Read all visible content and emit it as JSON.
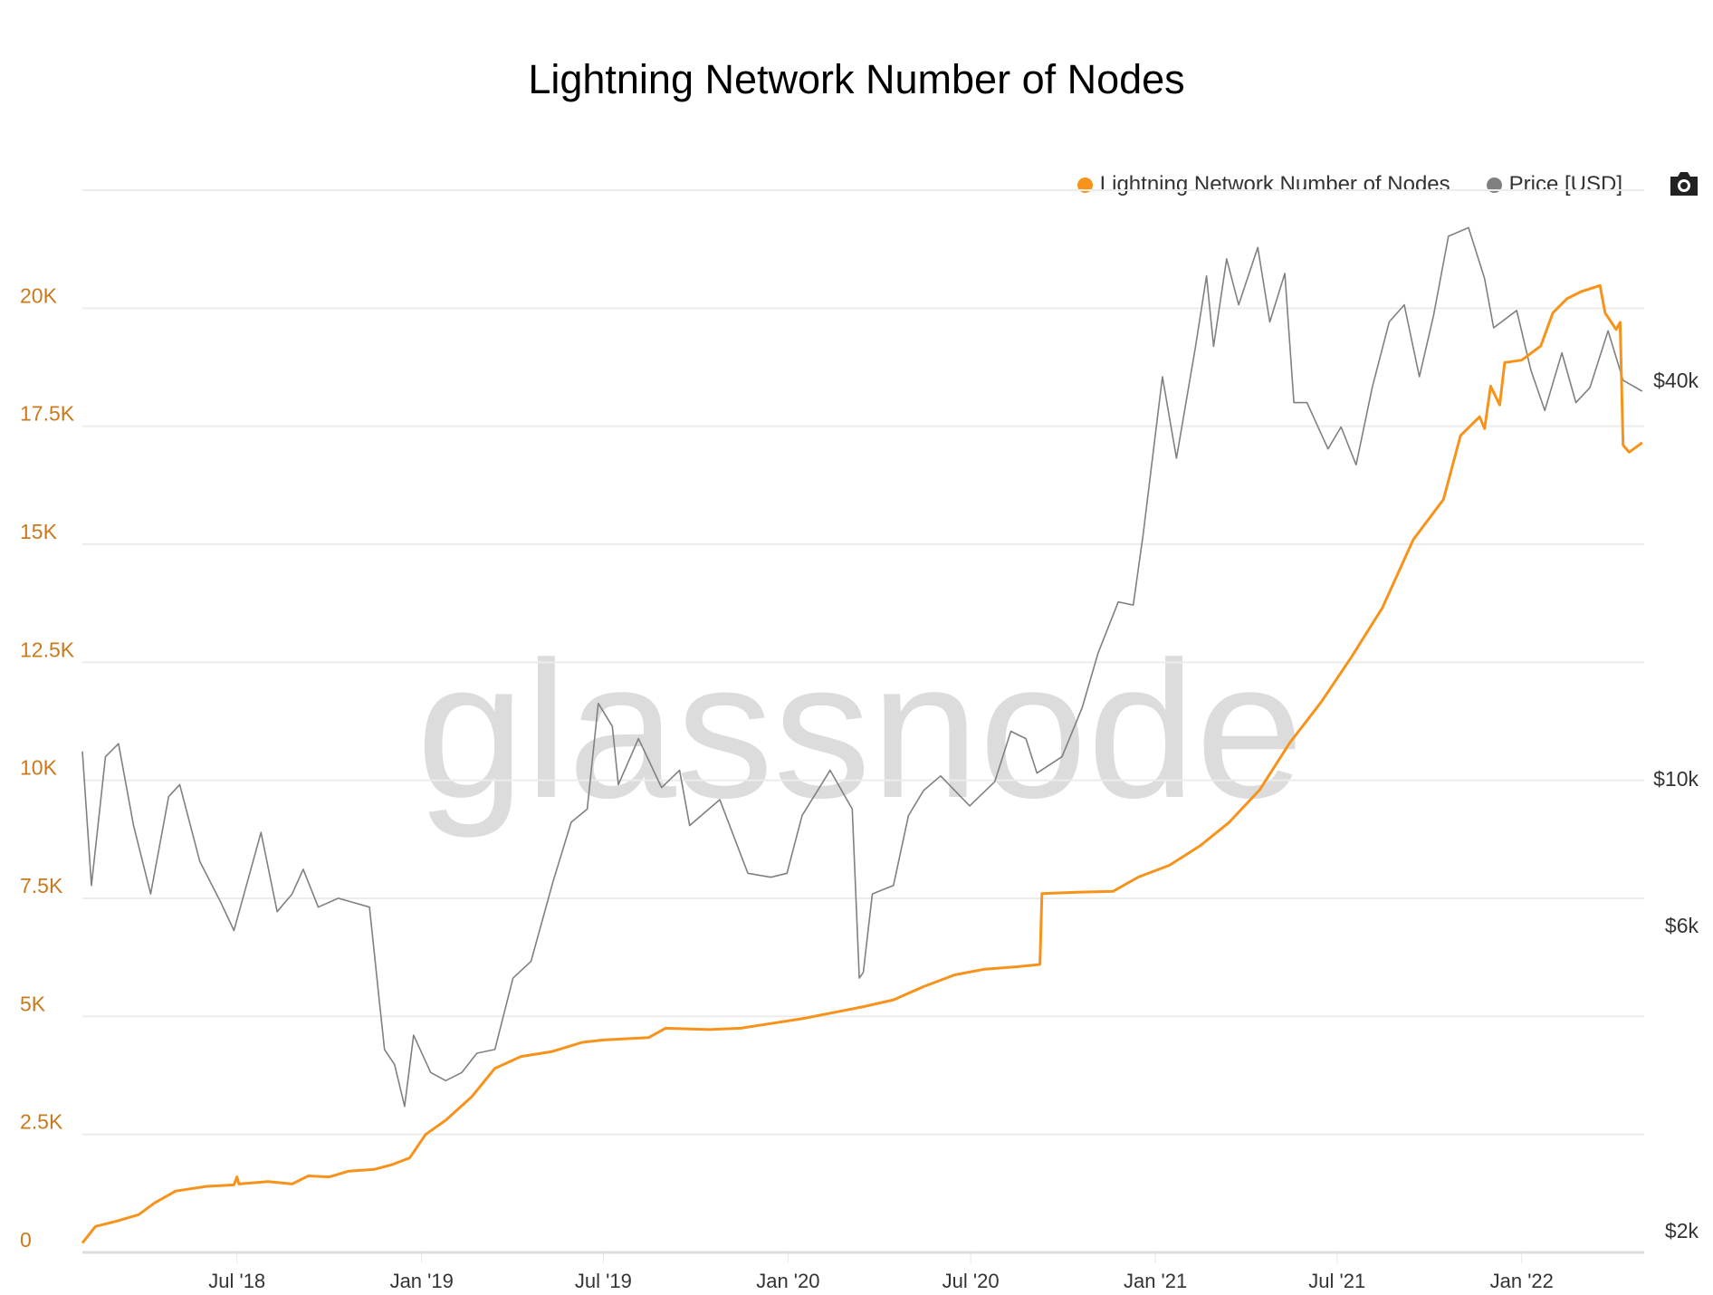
{
  "chart_data": {
    "type": "line",
    "title": "Lightning Network Number of Nodes",
    "watermark": "glassnode",
    "legend_position": "top-right",
    "grid": true,
    "x_ticks": [
      "Jul '18",
      "Jan '19",
      "Jul '19",
      "Jan '20",
      "Jul '20",
      "Jan '21",
      "Jul '21",
      "Jan '22"
    ],
    "x_tick_dates": [
      "2018-07-01",
      "2019-01-01",
      "2019-07-01",
      "2020-01-01",
      "2020-07-01",
      "2021-01-01",
      "2021-07-01",
      "2022-01-01"
    ],
    "xlim": [
      "2018-01-28",
      "2022-05-03"
    ],
    "y_left": {
      "scale": "linear",
      "ylim": [
        0,
        22500
      ],
      "ticks": [
        0,
        2500,
        5000,
        7500,
        10000,
        12500,
        15000,
        17500,
        20000
      ],
      "tick_labels": [
        "0",
        "2.5K",
        "5K",
        "7.5K",
        "10K",
        "12.5K",
        "15K",
        "17.5K",
        "20K"
      ],
      "color": "#c87a1c"
    },
    "y_right": {
      "scale": "log",
      "ticks": [
        2000,
        6000,
        10000,
        40000
      ],
      "tick_labels": [
        "$2k",
        "$6k",
        "$10k",
        "$40k"
      ]
    },
    "series": [
      {
        "name": "Lightning Network Number of Nodes",
        "color": "#f7931a",
        "axis": "left",
        "points": [
          [
            "2018-01-28",
            200
          ],
          [
            "2018-02-10",
            550
          ],
          [
            "2018-03-01",
            650
          ],
          [
            "2018-03-25",
            800
          ],
          [
            "2018-04-10",
            1050
          ],
          [
            "2018-05-01",
            1300
          ],
          [
            "2018-06-01",
            1400
          ],
          [
            "2018-06-28",
            1430
          ],
          [
            "2018-07-01",
            1600
          ],
          [
            "2018-07-03",
            1450
          ],
          [
            "2018-08-01",
            1500
          ],
          [
            "2018-08-25",
            1450
          ],
          [
            "2018-09-10",
            1620
          ],
          [
            "2018-10-01",
            1600
          ],
          [
            "2018-10-20",
            1720
          ],
          [
            "2018-11-15",
            1760
          ],
          [
            "2018-12-01",
            1850
          ],
          [
            "2018-12-20",
            2000
          ],
          [
            "2019-01-05",
            2500
          ],
          [
            "2019-01-25",
            2800
          ],
          [
            "2019-02-20",
            3300
          ],
          [
            "2019-03-15",
            3900
          ],
          [
            "2019-04-10",
            4150
          ],
          [
            "2019-05-10",
            4250
          ],
          [
            "2019-06-10",
            4450
          ],
          [
            "2019-07-01",
            4500
          ],
          [
            "2019-08-15",
            4550
          ],
          [
            "2019-09-01",
            4750
          ],
          [
            "2019-10-15",
            4720
          ],
          [
            "2019-11-15",
            4750
          ],
          [
            "2019-12-15",
            4850
          ],
          [
            "2020-01-15",
            4950
          ],
          [
            "2020-02-15",
            5080
          ],
          [
            "2020-03-15",
            5200
          ],
          [
            "2020-04-15",
            5350
          ],
          [
            "2020-05-15",
            5630
          ],
          [
            "2020-06-15",
            5880
          ],
          [
            "2020-07-15",
            6000
          ],
          [
            "2020-08-15",
            6050
          ],
          [
            "2020-09-08",
            6100
          ],
          [
            "2020-09-10",
            7600
          ],
          [
            "2020-10-15",
            7630
          ],
          [
            "2020-11-20",
            7650
          ],
          [
            "2020-12-15",
            7950
          ],
          [
            "2021-01-15",
            8200
          ],
          [
            "2021-02-15",
            8620
          ],
          [
            "2021-03-15",
            9100
          ],
          [
            "2021-04-15",
            9800
          ],
          [
            "2021-05-15",
            10800
          ],
          [
            "2021-06-15",
            11650
          ],
          [
            "2021-07-15",
            12600
          ],
          [
            "2021-08-15",
            13650
          ],
          [
            "2021-09-15",
            15100
          ],
          [
            "2021-10-15",
            15950
          ],
          [
            "2021-11-01",
            17300
          ],
          [
            "2021-11-20",
            17700
          ],
          [
            "2021-11-25",
            17450
          ],
          [
            "2021-12-01",
            18350
          ],
          [
            "2021-12-10",
            17950
          ],
          [
            "2021-12-15",
            18850
          ],
          [
            "2022-01-01",
            18900
          ],
          [
            "2022-01-20",
            19200
          ],
          [
            "2022-02-01",
            19900
          ],
          [
            "2022-02-15",
            20200
          ],
          [
            "2022-03-01",
            20350
          ],
          [
            "2022-03-20",
            20480
          ],
          [
            "2022-03-25",
            19900
          ],
          [
            "2022-04-05",
            19550
          ],
          [
            "2022-04-09",
            19700
          ],
          [
            "2022-04-12",
            17100
          ],
          [
            "2022-04-18",
            16950
          ],
          [
            "2022-05-01",
            17150
          ]
        ]
      },
      {
        "name": "Price [USD]",
        "color": "#808080",
        "axis": "right",
        "points": [
          [
            "2018-01-28",
            11000
          ],
          [
            "2018-02-06",
            6900
          ],
          [
            "2018-02-20",
            10800
          ],
          [
            "2018-03-05",
            11300
          ],
          [
            "2018-03-20",
            8500
          ],
          [
            "2018-04-06",
            6700
          ],
          [
            "2018-04-24",
            9400
          ],
          [
            "2018-05-05",
            9800
          ],
          [
            "2018-05-25",
            7500
          ],
          [
            "2018-06-15",
            6500
          ],
          [
            "2018-06-28",
            5900
          ],
          [
            "2018-07-25",
            8300
          ],
          [
            "2018-08-10",
            6300
          ],
          [
            "2018-08-25",
            6700
          ],
          [
            "2018-09-05",
            7300
          ],
          [
            "2018-09-20",
            6400
          ],
          [
            "2018-10-10",
            6600
          ],
          [
            "2018-11-10",
            6400
          ],
          [
            "2018-11-20",
            4600
          ],
          [
            "2018-11-25",
            3900
          ],
          [
            "2018-12-05",
            3700
          ],
          [
            "2018-12-15",
            3200
          ],
          [
            "2018-12-24",
            4100
          ],
          [
            "2019-01-10",
            3600
          ],
          [
            "2019-01-25",
            3500
          ],
          [
            "2019-02-10",
            3600
          ],
          [
            "2019-02-25",
            3850
          ],
          [
            "2019-03-15",
            3900
          ],
          [
            "2019-04-02",
            5000
          ],
          [
            "2019-04-20",
            5300
          ],
          [
            "2019-05-12",
            7000
          ],
          [
            "2019-05-30",
            8600
          ],
          [
            "2019-06-15",
            9000
          ],
          [
            "2019-06-26",
            13000
          ],
          [
            "2019-07-10",
            12000
          ],
          [
            "2019-07-16",
            9800
          ],
          [
            "2019-08-05",
            11500
          ],
          [
            "2019-08-28",
            9700
          ],
          [
            "2019-09-15",
            10300
          ],
          [
            "2019-09-25",
            8500
          ],
          [
            "2019-10-25",
            9300
          ],
          [
            "2019-11-22",
            7200
          ],
          [
            "2019-12-15",
            7100
          ],
          [
            "2019-12-31",
            7200
          ],
          [
            "2020-01-15",
            8800
          ],
          [
            "2020-02-12",
            10300
          ],
          [
            "2020-03-05",
            9000
          ],
          [
            "2020-03-12",
            5000
          ],
          [
            "2020-03-16",
            5100
          ],
          [
            "2020-03-25",
            6700
          ],
          [
            "2020-04-15",
            6900
          ],
          [
            "2020-04-30",
            8800
          ],
          [
            "2020-05-15",
            9600
          ],
          [
            "2020-06-01",
            10100
          ],
          [
            "2020-06-30",
            9100
          ],
          [
            "2020-07-25",
            9900
          ],
          [
            "2020-08-10",
            11800
          ],
          [
            "2020-08-25",
            11500
          ],
          [
            "2020-09-05",
            10200
          ],
          [
            "2020-09-30",
            10800
          ],
          [
            "2020-10-20",
            12800
          ],
          [
            "2020-11-05",
            15500
          ],
          [
            "2020-11-25",
            18500
          ],
          [
            "2020-12-10",
            18300
          ],
          [
            "2020-12-20",
            23500
          ],
          [
            "2021-01-08",
            40500
          ],
          [
            "2021-01-22",
            30500
          ],
          [
            "2021-02-10",
            45000
          ],
          [
            "2021-02-21",
            57500
          ],
          [
            "2021-02-28",
            45000
          ],
          [
            "2021-03-13",
            61000
          ],
          [
            "2021-03-25",
            52000
          ],
          [
            "2021-04-13",
            63500
          ],
          [
            "2021-04-25",
            49000
          ],
          [
            "2021-05-10",
            58000
          ],
          [
            "2021-05-19",
            37000
          ],
          [
            "2021-06-01",
            37000
          ],
          [
            "2021-06-22",
            31500
          ],
          [
            "2021-07-05",
            34000
          ],
          [
            "2021-07-20",
            29800
          ],
          [
            "2021-08-05",
            39000
          ],
          [
            "2021-08-22",
            49000
          ],
          [
            "2021-09-06",
            52000
          ],
          [
            "2021-09-21",
            40500
          ],
          [
            "2021-10-05",
            50000
          ],
          [
            "2021-10-20",
            66000
          ],
          [
            "2021-11-09",
            68000
          ],
          [
            "2021-11-25",
            57000
          ],
          [
            "2021-12-04",
            48000
          ],
          [
            "2021-12-27",
            51000
          ],
          [
            "2022-01-10",
            41500
          ],
          [
            "2022-01-24",
            36000
          ],
          [
            "2022-02-10",
            44000
          ],
          [
            "2022-02-24",
            37000
          ],
          [
            "2022-03-10",
            39000
          ],
          [
            "2022-03-28",
            47500
          ],
          [
            "2022-04-12",
            40000
          ],
          [
            "2022-05-01",
            38500
          ]
        ]
      }
    ]
  },
  "legend": {
    "items": [
      {
        "label": "Lightning Network Number of Nodes",
        "color": "#f7931a"
      },
      {
        "label": "Price [USD]",
        "color": "#808080"
      }
    ]
  },
  "toolbar": {
    "export_icon": "camera-icon"
  }
}
